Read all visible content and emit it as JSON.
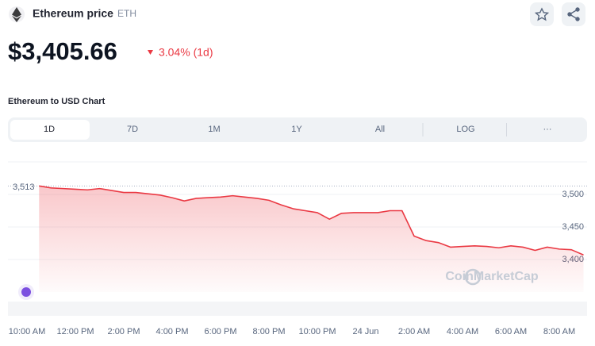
{
  "header": {
    "title": "Ethereum price",
    "symbol": "ETH"
  },
  "price": "$3,405.66",
  "change": "3.04% (1d)",
  "chart_heading": "Ethereum to USD Chart",
  "tabs": [
    "1D",
    "7D",
    "1M",
    "1Y",
    "All",
    "LOG",
    "···"
  ],
  "watermark": "CoinMarketCap",
  "chart_data": {
    "type": "line",
    "x": [
      "10:00 AM",
      null,
      null,
      null,
      "12:00 PM",
      null,
      null,
      null,
      "2:00 PM",
      null,
      null,
      null,
      "4:00 PM",
      null,
      null,
      null,
      "6:00 PM",
      null,
      null,
      null,
      "8:00 PM",
      null,
      null,
      null,
      "10:00 PM",
      null,
      null,
      null,
      "24 Jun",
      null,
      null,
      null,
      "2:00 AM",
      null,
      null,
      null,
      "4:00 AM",
      null,
      null,
      null,
      "6:00 AM",
      null,
      null,
      null,
      "8:00 AM",
      null,
      null,
      null
    ],
    "series": [
      {
        "name": "ETH",
        "color": "#ea3943",
        "values": [
          null,
          3513,
          3510,
          3509,
          3508,
          3507,
          3509,
          3506,
          3503,
          3503,
          3501,
          3499,
          3495,
          3490,
          3494,
          3495,
          3496,
          3498,
          3496,
          3494,
          3491,
          3484,
          3478,
          3475,
          3472,
          3462,
          3471,
          3472,
          3472,
          3472,
          3475,
          3475,
          3436,
          3429,
          3426,
          3419,
          3420,
          3421,
          3420,
          3418,
          3421,
          3419,
          3414,
          3419,
          3416,
          3415,
          3407,
          null
        ]
      }
    ],
    "ylim": [
      3350,
      3550
    ],
    "yticks": [
      {
        "value": 3400,
        "label": "3,400"
      },
      {
        "value": 3450,
        "label": "3,450"
      },
      {
        "value": 3500,
        "label": "3,500"
      }
    ],
    "reference": {
      "value": 3513,
      "label": "3,513"
    },
    "grid": true
  }
}
